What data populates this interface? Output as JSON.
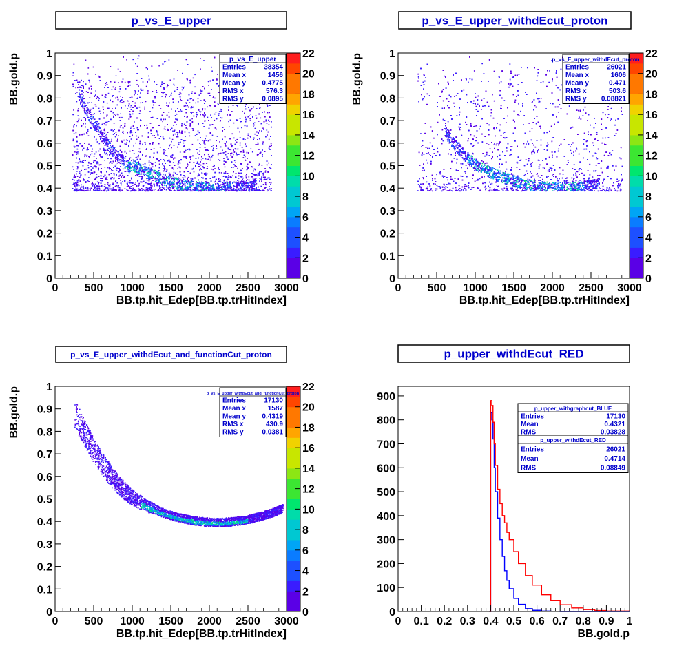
{
  "colors": {
    "title_text": "#0000cc",
    "stats_text": "#0000cc",
    "axis": "#000000",
    "palette": [
      "#5a00e6",
      "#3a1cff",
      "#1d50ff",
      "#0a7cff",
      "#00a5f5",
      "#00c8d2",
      "#00dcaa",
      "#00e66e",
      "#3ce632",
      "#8ce614",
      "#c8e600",
      "#f0d200",
      "#ffa500",
      "#ff7800",
      "#ff4600",
      "#ff1e1e"
    ],
    "hist_blue": "#0000ff",
    "hist_red": "#ff0000"
  },
  "chart_data": [
    {
      "type": "heatmap",
      "title": "p_vs_E_upper",
      "xlabel": "BB.tp.hit_Edep[BB.tp.trHitIndex]",
      "ylabel": "BB.gold.p",
      "xlim": [
        0,
        3000
      ],
      "ylim": [
        0,
        1
      ],
      "x_ticks": [
        "0",
        "500",
        "1000",
        "1500",
        "2000",
        "2500",
        "3000"
      ],
      "y_ticks": [
        "0",
        "0.1",
        "0.2",
        "0.3",
        "0.4",
        "0.5",
        "0.6",
        "0.7",
        "0.8",
        "0.9",
        "1"
      ],
      "z_ticks": [
        "0",
        "2",
        "4",
        "6",
        "8",
        "10",
        "12",
        "14",
        "16",
        "18",
        "20",
        "22"
      ],
      "zlim": [
        0,
        22
      ],
      "stats": {
        "name": "p_vs_E_upper",
        "rows": [
          [
            "Entries",
            "38354"
          ],
          [
            "Mean x",
            "1456"
          ],
          [
            "Mean y",
            "0.4775"
          ],
          [
            "RMS x",
            "576.3"
          ],
          [
            "RMS y",
            "0.0895"
          ]
        ]
      },
      "distribution": {
        "xmin": 220,
        "xmax": 2800,
        "ymin": 0.39,
        "band": true,
        "spread": "wide"
      }
    },
    {
      "type": "heatmap",
      "title": "p_vs_E_upper_withdEcut_proton",
      "xlabel": "BB.tp.hit_Edep[BB.tp.trHitIndex]",
      "ylabel": "BB.gold.p",
      "xlim": [
        0,
        3000
      ],
      "ylim": [
        0,
        1
      ],
      "x_ticks": [
        "0",
        "500",
        "1000",
        "1500",
        "2000",
        "2500",
        "3000"
      ],
      "y_ticks": [
        "0",
        "0.1",
        "0.2",
        "0.3",
        "0.4",
        "0.5",
        "0.6",
        "0.7",
        "0.8",
        "0.9",
        "1"
      ],
      "z_ticks": [
        "0",
        "2",
        "4",
        "6",
        "8",
        "10",
        "12",
        "14",
        "16",
        "18",
        "20",
        "22"
      ],
      "zlim": [
        0,
        22
      ],
      "stats": {
        "name": "p_vs_E_upper_withdEcut_proton",
        "rows": [
          [
            "Entries",
            "26021"
          ],
          [
            "Mean x",
            "1606"
          ],
          [
            "Mean y",
            "0.471"
          ],
          [
            "RMS x",
            "503.6"
          ],
          [
            "RMS y",
            "0.08821"
          ]
        ]
      },
      "distribution": {
        "xmin": 220,
        "xmax": 3000,
        "ymin": 0.39,
        "band": true,
        "spread": "medium"
      }
    },
    {
      "type": "heatmap",
      "title": "p_vs_E_upper_withdEcut_and_functionCut_proton",
      "xlabel": "BB.tp.hit_Edep[BB.tp.trHitIndex]",
      "ylabel": "BB.gold.p",
      "xlim": [
        0,
        3000
      ],
      "ylim": [
        0,
        1
      ],
      "x_ticks": [
        "0",
        "500",
        "1000",
        "1500",
        "2000",
        "2500",
        "3000"
      ],
      "y_ticks": [
        "0",
        "0.1",
        "0.2",
        "0.3",
        "0.4",
        "0.5",
        "0.6",
        "0.7",
        "0.8",
        "0.9",
        "1"
      ],
      "z_ticks": [
        "0",
        "2",
        "4",
        "6",
        "8",
        "10",
        "12",
        "14",
        "16",
        "18",
        "20",
        "22"
      ],
      "zlim": [
        0,
        22
      ],
      "stats": {
        "name": "p_vs_E_upper_withdEcut_and_functionCut_proton",
        "rows": [
          [
            "Entries",
            "17130"
          ],
          [
            "Mean x",
            "1587"
          ],
          [
            "Mean y",
            "0.4319"
          ],
          [
            "RMS x",
            "430.9"
          ],
          [
            "RMS y",
            "0.0381"
          ]
        ]
      },
      "distribution": {
        "xmin": 200,
        "xmax": 2950,
        "ymin": 0.38,
        "band": true,
        "spread": "narrow"
      }
    },
    {
      "type": "line",
      "title": "p_upper_withdEcut_RED",
      "xlabel": "BB.gold.p",
      "ylabel": "",
      "xlim": [
        0,
        1
      ],
      "ylim": [
        0,
        940
      ],
      "x_ticks": [
        "0",
        "0.1",
        "0.2",
        "0.3",
        "0.4",
        "0.5",
        "0.6",
        "0.7",
        "0.8",
        "0.9",
        "1"
      ],
      "y_ticks": [
        "0",
        "100",
        "200",
        "300",
        "400",
        "500",
        "600",
        "700",
        "800",
        "900"
      ],
      "x": [
        0.395,
        0.4,
        0.405,
        0.41,
        0.415,
        0.42,
        0.43,
        0.44,
        0.45,
        0.46,
        0.47,
        0.48,
        0.5,
        0.52,
        0.55,
        0.58,
        0.62,
        0.66,
        0.7,
        0.75,
        0.8,
        0.85,
        0.9,
        1.0
      ],
      "series": [
        {
          "name": "p_upper_withgraphcut_BLUE",
          "values": [
            0,
            830,
            800,
            720,
            600,
            500,
            390,
            300,
            230,
            170,
            130,
            95,
            55,
            30,
            12,
            5,
            2,
            1,
            0,
            0,
            0,
            0,
            0,
            0
          ]
        },
        {
          "name": "p_upper_withdEcut_RED",
          "values": [
            0,
            880,
            860,
            790,
            700,
            610,
            510,
            450,
            400,
            370,
            330,
            300,
            250,
            200,
            150,
            110,
            70,
            45,
            28,
            15,
            8,
            4,
            2,
            0
          ]
        }
      ],
      "stats_boxes": [
        {
          "name": "p_upper_withgraphcut_BLUE",
          "rows": [
            [
              "Entries",
              "17130"
            ],
            [
              "Mean",
              "0.4321"
            ],
            [
              "RMS",
              "0.03828"
            ]
          ]
        },
        {
          "name": "p_upper_withdEcut_RED",
          "rows": [
            [
              "Entries",
              "26021"
            ],
            [
              "Mean",
              "0.4714"
            ],
            [
              "RMS",
              "0.08849"
            ]
          ]
        }
      ]
    }
  ]
}
